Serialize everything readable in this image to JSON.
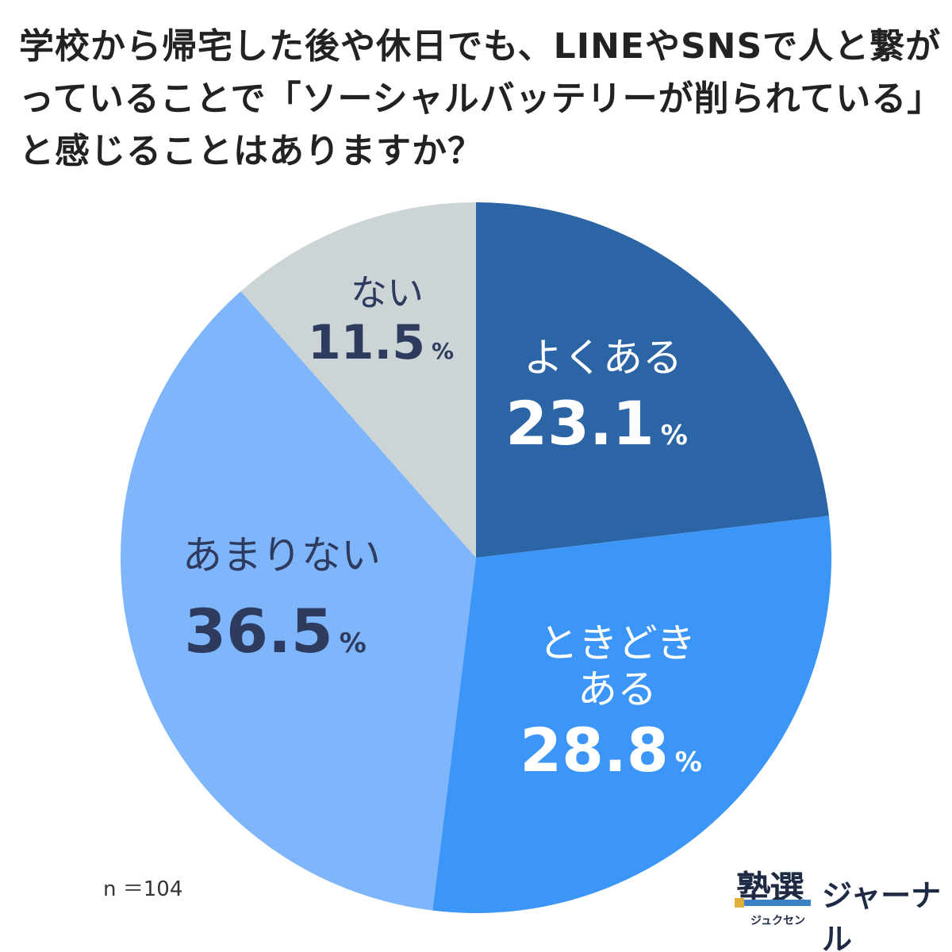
{
  "title_lines": [
    "学校から帰宅した後や休日でも、LINEやSNSで人と繋が",
    "っていることで「ソーシャルバッテリーが削られている」",
    "と感じることはありますか？"
  ],
  "sample_size": "n ＝104",
  "brand": {
    "kanji": "塾選",
    "kana": "ジュクセン",
    "journal": "ジャーナル"
  },
  "colors": {
    "often": "#2c65a6",
    "sometimes": "#3b96f7",
    "rarely": "#7fb6fb",
    "never": "#ccd4d6",
    "text_light": "#ffffff",
    "text_dark": "#2e3b5e"
  },
  "chart_data": {
    "type": "pie",
    "start": "top, clockwise",
    "slices": [
      {
        "label": "よくある",
        "value": 23.1,
        "unit": "%",
        "color": "#2c65a6",
        "text_color": "#ffffff"
      },
      {
        "label": "ときどき\nある",
        "value": 28.8,
        "unit": "%",
        "color": "#3b96f7",
        "text_color": "#ffffff"
      },
      {
        "label": "あまりない",
        "value": 36.5,
        "unit": "%",
        "color": "#7fb6fb",
        "text_color": "#2e3b5e"
      },
      {
        "label": "ない",
        "value": 11.5,
        "unit": "%",
        "color": "#ccd4d6",
        "text_color": "#2e3b5e"
      }
    ]
  }
}
